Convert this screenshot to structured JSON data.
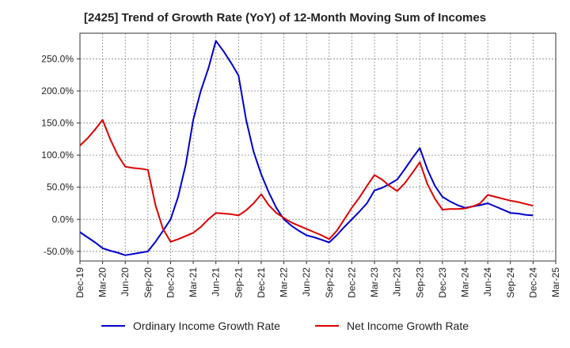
{
  "chart_data": {
    "type": "line",
    "title": "[2425]  Trend of Growth Rate (YoY) of 12-Month Moving Sum of Incomes",
    "xlabel": "",
    "ylabel": "",
    "ylim": [
      -65,
      290
    ],
    "y_ticks": [
      -50,
      0,
      50,
      100,
      150,
      200,
      250
    ],
    "y_tick_labels": [
      "-50.0%",
      "0.0%",
      "50.0%",
      "100.0%",
      "150.0%",
      "200.0%",
      "250.0%"
    ],
    "x_tick_labels": [
      "Dec-19",
      "Mar-20",
      "Jun-20",
      "Sep-20",
      "Dec-20",
      "Mar-21",
      "Jun-21",
      "Sep-21",
      "Dec-21",
      "Mar-22",
      "Jun-22",
      "Sep-22",
      "Dec-22",
      "Mar-23",
      "Jun-23",
      "Sep-23",
      "Dec-23",
      "Mar-24",
      "Jun-24",
      "Sep-24",
      "Dec-24",
      "Mar-25"
    ],
    "x": [
      "Dec-19",
      "Jan-20",
      "Feb-20",
      "Mar-20",
      "Apr-20",
      "May-20",
      "Jun-20",
      "Jul-20",
      "Aug-20",
      "Sep-20",
      "Oct-20",
      "Nov-20",
      "Dec-20",
      "Jan-21",
      "Feb-21",
      "Mar-21",
      "Apr-21",
      "May-21",
      "Jun-21",
      "Jul-21",
      "Aug-21",
      "Sep-21",
      "Oct-21",
      "Nov-21",
      "Dec-21",
      "Jan-22",
      "Feb-22",
      "Mar-22",
      "Apr-22",
      "May-22",
      "Jun-22",
      "Jul-22",
      "Aug-22",
      "Sep-22",
      "Oct-22",
      "Nov-22",
      "Dec-22",
      "Jan-23",
      "Feb-23",
      "Mar-23",
      "Apr-23",
      "May-23",
      "Jun-23",
      "Jul-23",
      "Aug-23",
      "Sep-23",
      "Oct-23",
      "Nov-23",
      "Dec-23",
      "Jan-24",
      "Feb-24",
      "Mar-24",
      "Apr-24",
      "May-24",
      "Jun-24",
      "Jul-24",
      "Aug-24",
      "Sep-24",
      "Oct-24",
      "Nov-24",
      "Dec-24"
    ],
    "grid": true,
    "legend_position": "bottom",
    "series": [
      {
        "name": "Ordinary Income Growth Rate",
        "color": "#0000cc",
        "values": [
          -20,
          -28,
          -36,
          -45,
          -49,
          -52,
          -56,
          -54,
          -52,
          -50,
          -35,
          -18,
          0,
          35,
          85,
          155,
          200,
          235,
          278,
          262,
          244,
          224,
          155,
          105,
          70,
          42,
          18,
          0,
          -10,
          -18,
          -25,
          -28,
          -32,
          -36,
          -25,
          -12,
          0,
          12,
          25,
          45,
          49,
          55,
          62,
          78,
          95,
          111,
          78,
          52,
          35,
          28,
          22,
          18,
          20,
          22,
          25,
          20,
          15,
          10,
          9,
          7,
          6
        ]
      },
      {
        "name": "Net Income Growth Rate",
        "color": "#dd0000",
        "values": [
          115,
          126,
          140,
          155,
          125,
          100,
          82,
          80,
          79,
          77,
          22,
          -15,
          -35,
          -31,
          -26,
          -21,
          -12,
          0,
          10,
          9,
          8,
          6,
          14,
          25,
          39,
          22,
          10,
          2,
          -5,
          -10,
          -15,
          -20,
          -25,
          -31,
          -18,
          0,
          18,
          34,
          52,
          69,
          62,
          52,
          44,
          56,
          72,
          89,
          55,
          32,
          15,
          16,
          16,
          17,
          20,
          25,
          38,
          35,
          32,
          29,
          27,
          24,
          21
        ]
      }
    ]
  }
}
